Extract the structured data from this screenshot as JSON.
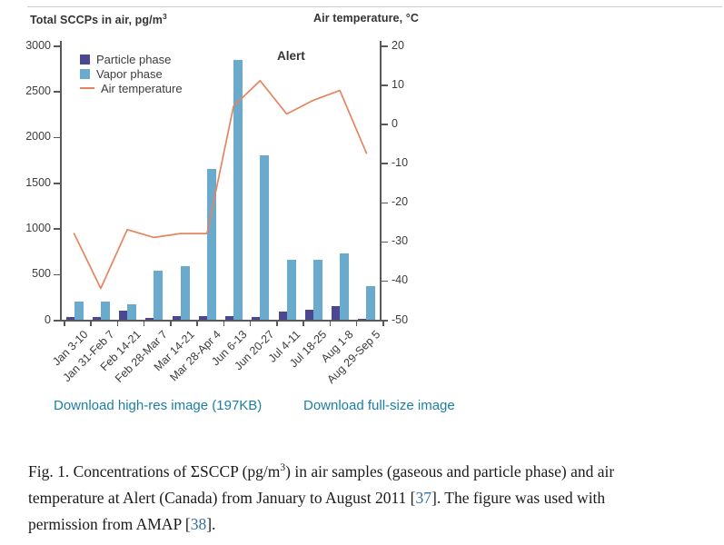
{
  "colors": {
    "particle": "#4c4791",
    "vapor": "#6aaacd",
    "temperature": "#e5855f",
    "axis": "#58595c",
    "chart_text": "#3c3c3e",
    "link_teal": "#1a7fa4",
    "ref_blue": "#3470a3"
  },
  "downloads": {
    "high_res": "Download high-res image (197KB)",
    "full_size": "Download full-size image"
  },
  "caption": {
    "line1_a": "Fig. 1. Concentrations of ΣSCCP (pg/m",
    "line1_sup": "3",
    "line1_b": ") in air samples (gaseous and particle phase) and air",
    "line2_a": "temperature at Alert (Canada) from January to August 2011 [",
    "ref1": "37",
    "line2_b": "]. The figure was used with",
    "line3_a": "permission from AMAP [",
    "ref2": "38",
    "line3_b": "]."
  },
  "chart_data": {
    "type": "bar",
    "subtype": "grouped bars with overlaid line on secondary axis",
    "title": "Alert",
    "legend_position": "top-left",
    "grid": false,
    "left_axis": {
      "label": "Total SCCPs in air, pg/m",
      "label_sup": "3",
      "min": 0,
      "max": 3000,
      "tick_step": 500,
      "ticks": [
        0,
        500,
        1000,
        1500,
        2000,
        2500,
        3000
      ]
    },
    "right_axis": {
      "label": "Air temperature, °C",
      "min": -50,
      "max": 20,
      "tick_step": 10,
      "ticks": [
        -50,
        -40,
        -30,
        -20,
        -10,
        0,
        10,
        20
      ]
    },
    "categories": [
      "Jan 3-10",
      "Jan 31-Feb 7",
      "Feb 14-21",
      "Feb 28-Mar 7",
      "Mar 14-21",
      "Mar 28-Apr 4",
      "Jun 6-13",
      "Jun 20-27",
      "Jul 4-11",
      "Jul 18-25",
      "Aug 1-8",
      "Aug 29-Sep 5"
    ],
    "series": [
      {
        "name": "Particle phase",
        "type": "bar",
        "axis": "left",
        "color": "#4c4791",
        "values": [
          25,
          33,
          100,
          23,
          43,
          43,
          40,
          33,
          92,
          110,
          145,
          10
        ]
      },
      {
        "name": "Vapor phase",
        "type": "bar",
        "axis": "left",
        "color": "#6aaacd",
        "values": [
          200,
          200,
          170,
          540,
          590,
          1650,
          2840,
          1800,
          660,
          655,
          730,
          370
        ]
      },
      {
        "name": "Air temperature",
        "type": "line",
        "axis": "right",
        "color": "#e5855f",
        "values": [
          -28,
          -42,
          -27,
          -29,
          -28,
          -28,
          4.5,
          11,
          2.5,
          6,
          8.5,
          -7.5
        ]
      }
    ]
  }
}
